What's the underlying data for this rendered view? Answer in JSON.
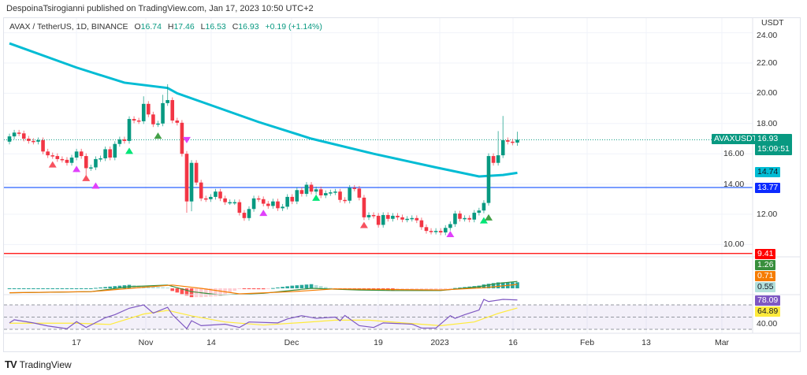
{
  "header": {
    "published": "DespoinaTsirogianni published on TradingView.com, Jan 17, 2023 10:50 UTC+2"
  },
  "legend": {
    "symbol": "AVAX / TetherUS, 1D, BINANCE",
    "o_label": "O",
    "o": "16.74",
    "h_label": "H",
    "h": "17.46",
    "l_label": "L",
    "l": "16.53",
    "c_label": "C",
    "c": "16.93",
    "change": "+0.19 (+1.14%)"
  },
  "price_scale": {
    "currency": "USDT",
    "ticks": [
      "24.00",
      "22.00",
      "20.00",
      "18.00",
      "16.00",
      "14.00",
      "12.00",
      "10.00"
    ]
  },
  "tags": {
    "symbol": "AVAXUSDT",
    "last_price": "16.93",
    "countdown": "15:09:51",
    "ema": "14.74",
    "blue_line": "13.77",
    "red_line": "9.41",
    "macd": "1.26",
    "signal": "0.71",
    "histogram": "0.55",
    "rsi": "78.09",
    "rsi_ma": "64.89",
    "rsi_tick": "40.00"
  },
  "time_axis": [
    "17",
    "Nov",
    "14",
    "Dec",
    "19",
    "2023",
    "16",
    "Feb",
    "13",
    "Mar"
  ],
  "footer": {
    "brand": "TradingView",
    "logo": "TV"
  },
  "colors": {
    "bull": "#089981",
    "bear": "#f23645",
    "ema": "#00bcd4",
    "blue_line": "#2962ff",
    "red_line": "#ff0000",
    "macd": "#388e3c",
    "signal": "#f57c00",
    "rsi": "#7e57c2",
    "rsi_ma": "#ffeb3b"
  },
  "chart_data": {
    "type": "candlestick",
    "symbol": "AVAXUSDT",
    "interval": "1D",
    "ylim": [
      9.0,
      24.0
    ],
    "last": {
      "open": 16.74,
      "high": 17.46,
      "low": 16.53,
      "close": 16.93
    },
    "closes": [
      [
        "2022-10-03",
        17.15
      ],
      [
        "2022-10-04",
        17.4
      ],
      [
        "2022-10-05",
        17.35
      ],
      [
        "2022-10-06",
        17.0
      ],
      [
        "2022-10-07",
        16.85
      ],
      [
        "2022-10-08",
        16.8
      ],
      [
        "2022-10-09",
        16.9
      ],
      [
        "2022-10-10",
        16.15
      ],
      [
        "2022-10-11",
        15.9
      ],
      [
        "2022-10-12",
        15.85
      ],
      [
        "2022-10-13",
        15.65
      ],
      [
        "2022-10-14",
        15.6
      ],
      [
        "2022-10-15",
        15.4
      ],
      [
        "2022-10-16",
        15.75
      ],
      [
        "2022-10-17",
        16.15
      ],
      [
        "2022-10-18",
        15.85
      ],
      [
        "2022-10-19",
        15.05
      ],
      [
        "2022-10-20",
        15.1
      ],
      [
        "2022-10-21",
        15.65
      ],
      [
        "2022-10-22",
        15.7
      ],
      [
        "2022-10-23",
        16.3
      ],
      [
        "2022-10-24",
        15.75
      ],
      [
        "2022-10-25",
        16.65
      ],
      [
        "2022-10-26",
        16.95
      ],
      [
        "2022-10-27",
        16.85
      ],
      [
        "2022-10-28",
        18.3
      ],
      [
        "2022-10-29",
        18.2
      ],
      [
        "2022-10-30",
        18.15
      ],
      [
        "2022-10-31",
        19.3
      ],
      [
        "2022-11-01",
        18.6
      ],
      [
        "2022-11-02",
        17.95
      ],
      [
        "2022-11-03",
        18.0
      ],
      [
        "2022-11-04",
        19.35
      ],
      [
        "2022-11-05",
        19.55
      ],
      [
        "2022-11-06",
        18.2
      ],
      [
        "2022-11-07",
        18.05
      ],
      [
        "2022-11-08",
        16.0
      ],
      [
        "2022-11-09",
        12.85
      ],
      [
        "2022-11-10",
        15.4
      ],
      [
        "2022-11-11",
        14.1
      ],
      [
        "2022-11-12",
        13.05
      ],
      [
        "2022-11-13",
        13.0
      ],
      [
        "2022-11-14",
        13.15
      ],
      [
        "2022-11-15",
        13.5
      ],
      [
        "2022-11-16",
        13.05
      ],
      [
        "2022-11-17",
        12.8
      ],
      [
        "2022-11-18",
        12.8
      ],
      [
        "2022-11-19",
        12.8
      ],
      [
        "2022-11-20",
        12.1
      ],
      [
        "2022-11-21",
        11.75
      ],
      [
        "2022-11-22",
        12.35
      ],
      [
        "2022-11-23",
        13.05
      ],
      [
        "2022-11-24",
        13.0
      ],
      [
        "2022-11-25",
        12.7
      ],
      [
        "2022-11-26",
        12.55
      ],
      [
        "2022-11-27",
        12.85
      ],
      [
        "2022-11-28",
        12.4
      ],
      [
        "2022-11-29",
        12.5
      ],
      [
        "2022-11-30",
        13.15
      ],
      [
        "2022-12-01",
        12.85
      ],
      [
        "2022-12-02",
        13.6
      ],
      [
        "2022-12-03",
        13.35
      ],
      [
        "2022-12-04",
        13.95
      ],
      [
        "2022-12-05",
        13.5
      ],
      [
        "2022-12-06",
        13.65
      ],
      [
        "2022-12-07",
        13.25
      ],
      [
        "2022-12-08",
        13.4
      ],
      [
        "2022-12-09",
        13.45
      ],
      [
        "2022-12-10",
        13.5
      ],
      [
        "2022-12-11",
        12.95
      ],
      [
        "2022-12-12",
        12.9
      ],
      [
        "2022-12-13",
        13.75
      ],
      [
        "2022-12-14",
        13.7
      ],
      [
        "2022-12-15",
        13.1
      ],
      [
        "2022-12-16",
        11.8
      ],
      [
        "2022-12-17",
        11.95
      ],
      [
        "2022-12-18",
        11.9
      ],
      [
        "2022-12-19",
        11.3
      ],
      [
        "2022-12-20",
        11.95
      ],
      [
        "2022-12-21",
        11.7
      ],
      [
        "2022-12-22",
        11.9
      ],
      [
        "2022-12-23",
        11.8
      ],
      [
        "2022-12-24",
        11.65
      ],
      [
        "2022-12-25",
        11.7
      ],
      [
        "2022-12-26",
        11.75
      ],
      [
        "2022-12-27",
        11.6
      ],
      [
        "2022-12-28",
        11.15
      ],
      [
        "2022-12-29",
        10.9
      ],
      [
        "2022-12-30",
        10.85
      ],
      [
        "2022-12-31",
        10.9
      ],
      [
        "2023-01-01",
        10.8
      ],
      [
        "2023-01-02",
        11.1
      ],
      [
        "2023-01-03",
        11.35
      ],
      [
        "2023-01-04",
        12.05
      ],
      [
        "2023-01-05",
        11.7
      ],
      [
        "2023-01-06",
        11.75
      ],
      [
        "2023-01-07",
        11.65
      ],
      [
        "2023-01-08",
        12.1
      ],
      [
        "2023-01-09",
        12.25
      ],
      [
        "2023-01-10",
        12.75
      ],
      [
        "2023-01-11",
        15.85
      ],
      [
        "2023-01-12",
        15.4
      ],
      [
        "2023-01-13",
        15.9
      ],
      [
        "2023-01-14",
        16.9
      ],
      [
        "2023-01-15",
        16.8
      ],
      [
        "2023-01-16",
        16.74
      ],
      [
        "2023-01-17",
        16.93
      ]
    ],
    "notable_highs": [
      [
        "2022-11-05",
        20.6
      ],
      [
        "2022-11-04",
        19.9
      ],
      [
        "2022-10-31",
        19.8
      ],
      [
        "2023-01-14",
        18.5
      ],
      [
        "2023-01-13",
        17.5
      ],
      [
        "2023-01-17",
        17.46
      ]
    ],
    "notable_lows": [
      [
        "2022-10-19",
        14.5
      ],
      [
        "2022-11-09",
        12.1
      ],
      [
        "2022-11-10",
        12.2
      ],
      [
        "2023-01-17",
        16.53
      ]
    ],
    "ema_line": [
      [
        "2022-10-03",
        23.3
      ],
      [
        "2022-10-17",
        21.7
      ],
      [
        "2022-10-27",
        20.7
      ],
      [
        "2022-11-05",
        20.35
      ],
      [
        "2022-11-07",
        20.0
      ],
      [
        "2022-11-24",
        18.1
      ],
      [
        "2022-12-05",
        17.0
      ],
      [
        "2022-12-18",
        16.0
      ],
      [
        "2022-12-31",
        15.1
      ],
      [
        "2023-01-09",
        14.5
      ],
      [
        "2023-01-14",
        14.6
      ],
      [
        "2023-01-17",
        14.74
      ]
    ],
    "horizontal_lines": [
      {
        "price": 13.77,
        "color": "#2962ff"
      },
      {
        "price": 9.41,
        "color": "#ff0000"
      }
    ],
    "markers": [
      [
        "2022-10-12",
        "up",
        "#f7525f",
        15.3
      ],
      [
        "2022-10-17",
        "up",
        "#e040fb",
        15.0
      ],
      [
        "2022-10-19",
        "up",
        "#f7525f",
        14.4
      ],
      [
        "2022-10-21",
        "up",
        "#e040fb",
        13.9
      ],
      [
        "2022-10-28",
        "up",
        "#00e676",
        16.2
      ],
      [
        "2022-11-03",
        "up",
        "#43a047",
        17.2
      ],
      [
        "2022-11-09",
        "down",
        "#e040fb",
        16.9
      ],
      [
        "2022-11-25",
        "up",
        "#e040fb",
        12.1
      ],
      [
        "2022-12-06",
        "up",
        "#00e676",
        13.1
      ],
      [
        "2022-12-16",
        "up",
        "#f7525f",
        11.3
      ],
      [
        "2023-01-03",
        "up",
        "#e040fb",
        10.7
      ],
      [
        "2023-01-10",
        "up",
        "#00e676",
        11.6
      ],
      [
        "2023-01-11",
        "up",
        "#43a047",
        11.8
      ]
    ],
    "macd": [
      [
        "2022-10-03",
        -0.8
      ],
      [
        "2022-10-20",
        -0.6
      ],
      [
        "2022-10-28",
        0.3
      ],
      [
        "2022-11-05",
        0.6
      ],
      [
        "2022-11-10",
        -0.6
      ],
      [
        "2022-11-16",
        -1.2
      ],
      [
        "2022-11-25",
        -0.9
      ],
      [
        "2022-12-05",
        0.0
      ],
      [
        "2022-12-15",
        -0.3
      ],
      [
        "2022-12-22",
        -0.4
      ],
      [
        "2023-01-01",
        -0.4
      ],
      [
        "2023-01-09",
        0.3
      ],
      [
        "2023-01-13",
        0.9
      ],
      [
        "2023-01-17",
        1.26
      ]
    ],
    "macd_signal": [
      [
        "2022-10-03",
        -0.8
      ],
      [
        "2022-10-20",
        -0.6
      ],
      [
        "2022-10-31",
        0.2
      ],
      [
        "2022-11-06",
        0.6
      ],
      [
        "2022-11-12",
        0.0
      ],
      [
        "2022-11-20",
        -1.0
      ],
      [
        "2022-12-01",
        -0.6
      ],
      [
        "2022-12-10",
        -0.1
      ],
      [
        "2022-12-20",
        -0.2
      ],
      [
        "2023-01-01",
        -0.3
      ],
      [
        "2023-01-10",
        0.1
      ],
      [
        "2023-01-17",
        0.71
      ]
    ],
    "rsi": [
      [
        "2022-10-03",
        40.5
      ],
      [
        "2022-10-04",
        45.6
      ],
      [
        "2022-10-08",
        40.5
      ],
      [
        "2022-10-11",
        35.5
      ],
      [
        "2022-10-15",
        31
      ],
      [
        "2022-10-17",
        42.6
      ],
      [
        "2022-10-19",
        33
      ],
      [
        "2022-10-21",
        41
      ],
      [
        "2022-10-23",
        49
      ],
      [
        "2022-10-25",
        54
      ],
      [
        "2022-10-28",
        64.5
      ],
      [
        "2022-10-31",
        70
      ],
      [
        "2022-11-02",
        56.5
      ],
      [
        "2022-11-05",
        66
      ],
      [
        "2022-11-06",
        54
      ],
      [
        "2022-11-09",
        31
      ],
      [
        "2022-11-10",
        44
      ],
      [
        "2022-11-12",
        36
      ],
      [
        "2022-11-17",
        38.4
      ],
      [
        "2022-11-20",
        33
      ],
      [
        "2022-11-22",
        42
      ],
      [
        "2022-11-28",
        40.5
      ],
      [
        "2022-11-30",
        47
      ],
      [
        "2022-12-03",
        52.3
      ],
      [
        "2022-12-06",
        48
      ],
      [
        "2022-12-10",
        50
      ],
      [
        "2022-12-11",
        44
      ],
      [
        "2022-12-12",
        52.7
      ],
      [
        "2022-12-15",
        36
      ],
      [
        "2022-12-18",
        33
      ],
      [
        "2022-12-20",
        40.5
      ],
      [
        "2022-12-26",
        38.4
      ],
      [
        "2022-12-28",
        32
      ],
      [
        "2022-12-31",
        32
      ],
      [
        "2023-01-03",
        52.3
      ],
      [
        "2023-01-04",
        48
      ],
      [
        "2023-01-06",
        54
      ],
      [
        "2023-01-09",
        61.6
      ],
      [
        "2023-01-10",
        79
      ],
      [
        "2023-01-11",
        75.5
      ],
      [
        "2023-01-14",
        79
      ],
      [
        "2023-01-17",
        78.09
      ]
    ],
    "rsi_ma": [
      [
        "2022-10-03",
        40
      ],
      [
        "2022-10-17",
        40
      ],
      [
        "2022-10-24",
        38
      ],
      [
        "2022-10-31",
        55
      ],
      [
        "2022-11-05",
        61
      ],
      [
        "2022-11-10",
        52
      ],
      [
        "2022-11-17",
        42
      ],
      [
        "2022-11-25",
        37
      ],
      [
        "2022-12-03",
        41
      ],
      [
        "2022-12-10",
        45
      ],
      [
        "2022-12-17",
        45
      ],
      [
        "2022-12-25",
        40
      ],
      [
        "2023-01-01",
        36
      ],
      [
        "2023-01-08",
        42
      ],
      [
        "2023-01-13",
        56
      ],
      [
        "2023-01-17",
        64.89
      ]
    ],
    "rsi_bands": [
      70,
      50,
      30
    ]
  }
}
